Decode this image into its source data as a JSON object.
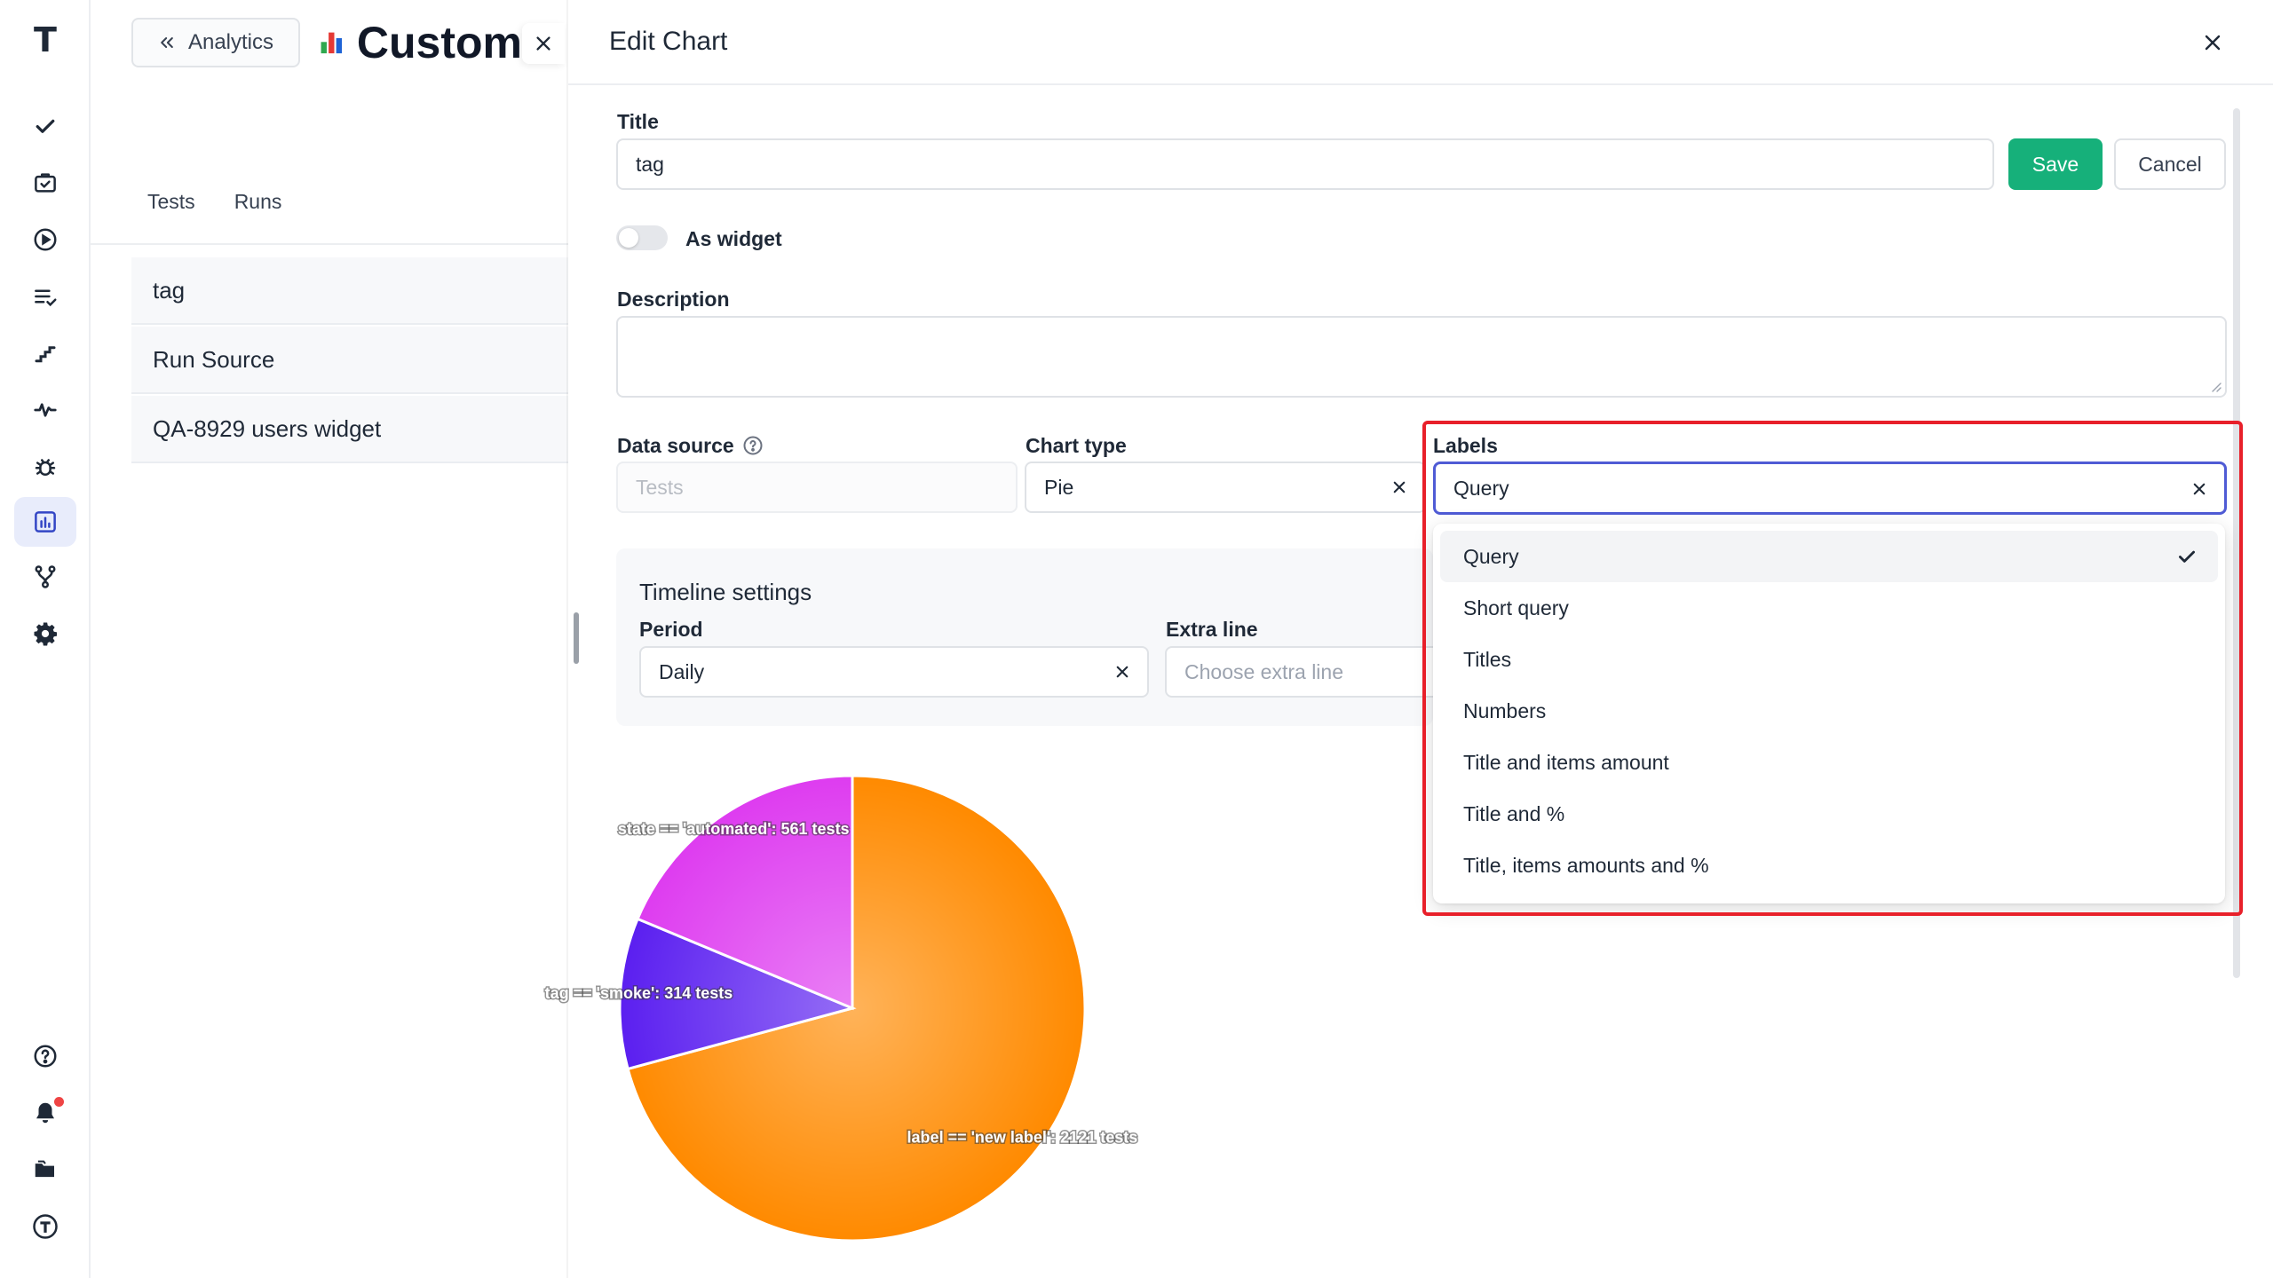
{
  "rail": {
    "logo": "T",
    "items": [
      {
        "name": "checkmark",
        "active": false
      },
      {
        "name": "test-suite",
        "active": false
      },
      {
        "name": "runs-play",
        "active": false
      },
      {
        "name": "plans",
        "active": false
      },
      {
        "name": "steps",
        "active": false
      },
      {
        "name": "pulse",
        "active": false
      },
      {
        "name": "bug",
        "active": false
      },
      {
        "name": "analytics",
        "active": true
      },
      {
        "name": "branches",
        "active": false
      },
      {
        "name": "settings",
        "active": false
      }
    ]
  },
  "page": {
    "back_label": "Analytics",
    "title": "Custom",
    "tabs": [
      "Tests",
      "Runs"
    ],
    "charts": [
      "tag",
      "Run Source",
      "QA-8929 users widget"
    ]
  },
  "drawer": {
    "title": "Edit Chart",
    "form": {
      "title_label": "Title",
      "title_value": "tag",
      "save_label": "Save",
      "cancel_label": "Cancel",
      "widget_label": "As widget",
      "widget_on": false,
      "description_label": "Description",
      "description_value": "",
      "data_source_label": "Data source",
      "data_source_placeholder": "Tests",
      "chart_type_label": "Chart type",
      "chart_type_value": "Pie",
      "labels_label": "Labels",
      "labels_value": "Query",
      "timeline_title": "Timeline settings",
      "period_label": "Period",
      "period_value": "Daily",
      "extra_line_label": "Extra line",
      "extra_line_placeholder": "Choose extra line"
    },
    "labels_menu": {
      "options": [
        "Query",
        "Short query",
        "Titles",
        "Numbers",
        "Title and items amount",
        "Title and %",
        "Title, items amounts and %"
      ],
      "selected": "Query"
    }
  },
  "chart_data": {
    "type": "pie",
    "slices": [
      {
        "label": "label == 'new label': 2121 tests",
        "value": 2121,
        "color": "#ff8a00"
      },
      {
        "label": "tag == 'smoke': 314 tests",
        "value": 314,
        "color": "#5b1ff0"
      },
      {
        "label": "state == 'automated': 561 tests",
        "value": 561,
        "color": "#de3cf0"
      }
    ]
  },
  "colors": {
    "accent": "#4f5bd5",
    "save": "#16b07a",
    "highlight": "#e8202a"
  }
}
